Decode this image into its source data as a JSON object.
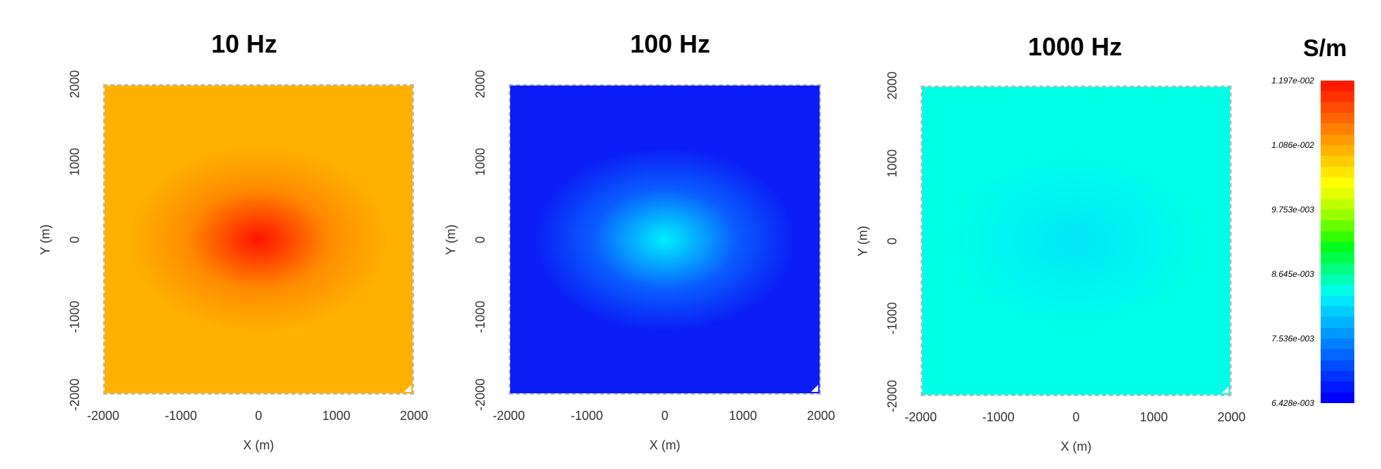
{
  "chart_data": [
    {
      "type": "heatmap",
      "title": "10 Hz",
      "xlabel": "X (m)",
      "ylabel": "Y (m)",
      "xlim": [
        -2000,
        2000
      ],
      "ylim": [
        -2000,
        2000
      ],
      "x_ticks": [
        "-2000",
        "-1000",
        "0",
        "1000",
        "2000"
      ],
      "y_ticks": [
        "2000",
        "1000",
        "0",
        "-1000",
        "-2000"
      ],
      "value_range": [
        0.0115,
        0.0121
      ],
      "center_value": 0.0121,
      "edge_value": 0.0115,
      "colors": {
        "edge": "#ffb000",
        "mid": "#ff8c00",
        "center": "#ff1400"
      }
    },
    {
      "type": "heatmap",
      "title": "100 Hz",
      "xlabel": "X (m)",
      "ylabel": "Y (m)",
      "xlim": [
        -2000,
        2000
      ],
      "ylim": [
        -2000,
        2000
      ],
      "x_ticks": [
        "-2000",
        "-1000",
        "0",
        "1000",
        "2000"
      ],
      "y_ticks": [
        "2000",
        "1000",
        "0",
        "-1000",
        "-2000"
      ],
      "value_range": [
        0.0064,
        0.0076
      ],
      "center_value": 0.0076,
      "edge_value": 0.0064,
      "colors": {
        "edge": "#0a1ef5",
        "mid": "#0a5cff",
        "center": "#00f0ff"
      }
    },
    {
      "type": "heatmap",
      "title": "1000 Hz",
      "xlabel": "X (m)",
      "ylabel": "Y (m)",
      "xlim": [
        -2000,
        2000
      ],
      "ylim": [
        -2000,
        2000
      ],
      "x_ticks": [
        "-2000",
        "-1000",
        "0",
        "1000",
        "2000"
      ],
      "y_ticks": [
        "2000",
        "1000",
        "0",
        "-1000",
        "-2000"
      ],
      "value_range": [
        0.0074,
        0.0078
      ],
      "center_value": 0.0074,
      "edge_value": 0.0078,
      "colors": {
        "edge": "#00ffe6",
        "mid": "#00f5f2",
        "center": "#00e6f5"
      }
    }
  ],
  "colorbar": {
    "title": "S/m",
    "labels": [
      "1.197e-002",
      "1.086e-002",
      "9.753e-003",
      "8.645e-003",
      "7.536e-003",
      "6.428e-003"
    ],
    "colors_top_to_bottom": [
      "#ff1a00",
      "#ff3300",
      "#ff4d00",
      "#ff6600",
      "#ff8000",
      "#ff9900",
      "#ffb300",
      "#ffcc00",
      "#ffe600",
      "#ffff00",
      "#e6ff00",
      "#bfff00",
      "#99ff00",
      "#66ff00",
      "#33ff00",
      "#00ff1a",
      "#00ff4d",
      "#00ff80",
      "#00ffb3",
      "#00ffe6",
      "#00e6ff",
      "#00ccff",
      "#00b3ff",
      "#0099ff",
      "#0080ff",
      "#0066ff",
      "#004dff",
      "#0033ff",
      "#001aff",
      "#0000ff"
    ]
  }
}
